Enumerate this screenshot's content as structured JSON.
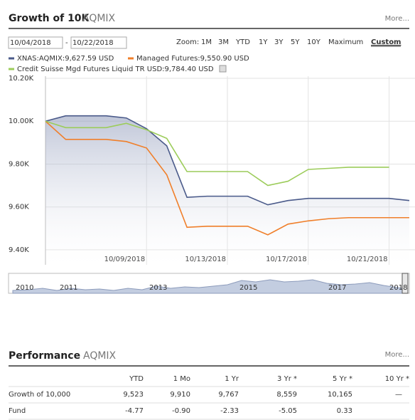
{
  "header": {
    "title": "Growth of 10K",
    "ticker": "AQMIX",
    "more": "More..."
  },
  "date_range": {
    "start": "10/04/2018",
    "separator": "-",
    "end": "10/22/2018"
  },
  "zoom": {
    "label": "Zoom:",
    "options": [
      "1M",
      "3M",
      "YTD",
      "1Y",
      "3Y",
      "5Y",
      "10Y",
      "Maximum"
    ],
    "active": "Custom"
  },
  "chart_data": {
    "type": "line",
    "x": [
      "10/04/2018",
      "10/05/2018",
      "10/07/2018",
      "10/08/2018",
      "10/09/2018",
      "10/10/2018",
      "10/11/2018",
      "10/12/2018",
      "10/13/2018",
      "10/14/2018",
      "10/15/2018",
      "10/16/2018",
      "10/17/2018",
      "10/18/2018",
      "10/19/2018",
      "10/20/2018",
      "10/21/2018",
      "10/22/2018"
    ],
    "series": [
      {
        "name": "XNAS:AQMIX:9,627.59 USD",
        "color": "#4a5a8a",
        "values": [
          10000,
          10025,
          10025,
          10015,
          9965,
          9885,
          9645,
          9650,
          9650,
          9650,
          9610,
          9630,
          9640,
          9640,
          9640,
          9640,
          9640,
          9630
        ]
      },
      {
        "name": "Managed Futures:9,550.90 USD",
        "color": "#f07f2a",
        "values": [
          10000,
          9915,
          9915,
          9905,
          9875,
          9750,
          9505,
          9510,
          9510,
          9510,
          9470,
          9520,
          9535,
          9545,
          9550,
          9550,
          9550,
          9550
        ]
      },
      {
        "name": "Credit Suisse Mgd Futures Liquid TR USD:9,784.40 USD",
        "color": "#9ccc5a",
        "values": [
          10000,
          9970,
          9970,
          9990,
          9960,
          9920,
          9765,
          9765,
          9765,
          9765,
          9700,
          9720,
          9775,
          9780,
          9785,
          9785,
          9785,
          null
        ]
      }
    ],
    "xlim": [
      "10/04/2018",
      "10/22/2018"
    ],
    "xticks": [
      "10/09/2018",
      "10/13/2018",
      "10/17/2018",
      "10/21/2018"
    ],
    "ylim": [
      9330,
      10210
    ],
    "yticks": [
      {
        "value": 9400,
        "label": "9.40K"
      },
      {
        "value": 9600,
        "label": "9.60K"
      },
      {
        "value": 9800,
        "label": "9.80K"
      },
      {
        "value": 10000,
        "label": "10.00K"
      },
      {
        "value": 10200,
        "label": "10.20K"
      }
    ],
    "grid": true
  },
  "navigator": {
    "years": [
      "2010",
      "2011",
      "2013",
      "2015",
      "2017",
      "2018"
    ]
  },
  "performance": {
    "title": "Performance",
    "ticker": "AQMIX",
    "more": "More...",
    "columns": [
      "YTD",
      "1 Mo",
      "1 Yr",
      "3 Yr *",
      "5 Yr *",
      "10 Yr *"
    ],
    "rows": [
      {
        "label": "Growth of 10,000",
        "cells": [
          "9,523",
          "9,910",
          "9,767",
          "8,559",
          "10,165",
          "—"
        ]
      },
      {
        "label": "Fund",
        "cells": [
          "-4.77",
          "-0.90",
          "-2.33",
          "-5.05",
          "0.33"
        ]
      }
    ]
  }
}
